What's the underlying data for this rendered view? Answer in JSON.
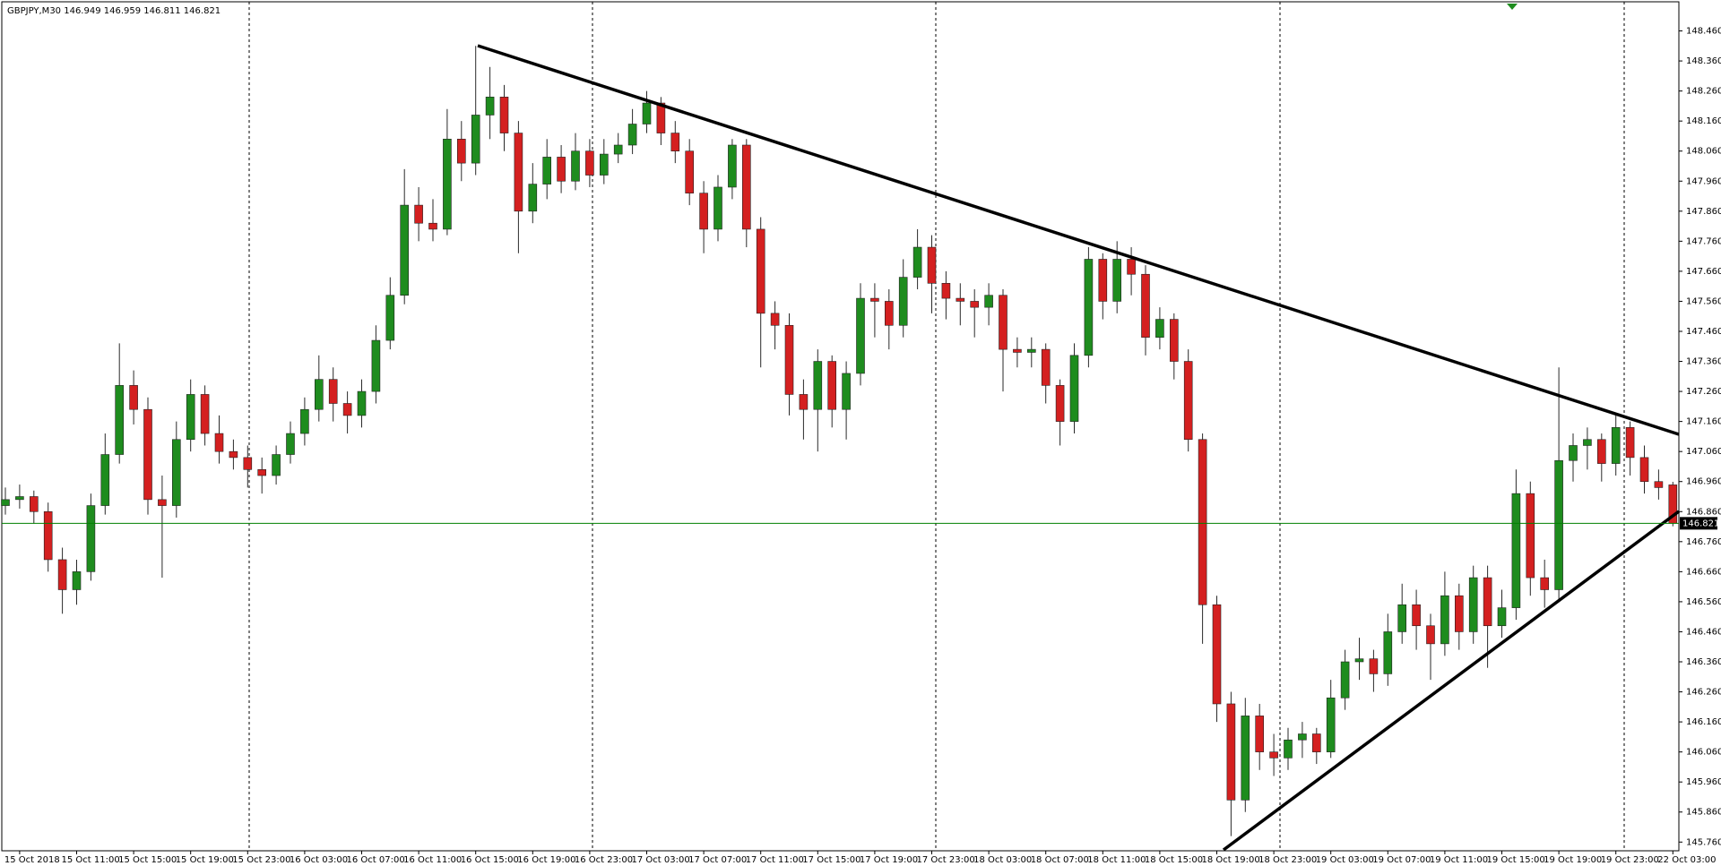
{
  "chart_data": {
    "type": "candlestick",
    "title": "GBPJPY,M30  146.949 146.959 146.811 146.821",
    "up_color": "#1e8c1e",
    "down_color": "#d42020",
    "wick_color": "#2a2a2a",
    "current_price": 146.821,
    "current_price_color": "#008000",
    "ylim": [
      145.734,
      148.548
    ],
    "yticks": [
      {
        "value": 145.76,
        "label": "145.760"
      },
      {
        "value": 145.86,
        "label": "145.860"
      },
      {
        "value": 145.96,
        "label": "145.960"
      },
      {
        "value": 146.06,
        "label": "146.060"
      },
      {
        "value": 146.16,
        "label": "146.160"
      },
      {
        "value": 146.26,
        "label": "146.260"
      },
      {
        "value": 146.36,
        "label": "146.360"
      },
      {
        "value": 146.46,
        "label": "146.460"
      },
      {
        "value": 146.56,
        "label": "146.560"
      },
      {
        "value": 146.66,
        "label": "146.660"
      },
      {
        "value": 146.76,
        "label": "146.760"
      },
      {
        "value": 146.86,
        "label": "146.860"
      },
      {
        "value": 146.96,
        "label": "146.960"
      },
      {
        "value": 147.06,
        "label": "147.060"
      },
      {
        "value": 147.16,
        "label": "147.160"
      },
      {
        "value": 147.26,
        "label": "147.260"
      },
      {
        "value": 147.36,
        "label": "147.360"
      },
      {
        "value": 147.46,
        "label": "147.460"
      },
      {
        "value": 147.56,
        "label": "147.560"
      },
      {
        "value": 147.66,
        "label": "147.660"
      },
      {
        "value": 147.76,
        "label": "147.760"
      },
      {
        "value": 147.86,
        "label": "147.860"
      },
      {
        "value": 147.96,
        "label": "147.960"
      },
      {
        "value": 148.06,
        "label": "148.060"
      },
      {
        "value": 148.16,
        "label": "148.160"
      },
      {
        "value": 148.26,
        "label": "148.260"
      },
      {
        "value": 148.36,
        "label": "148.360"
      },
      {
        "value": 148.46,
        "label": "148.460"
      }
    ],
    "categories": [
      null,
      "15 Oct 2018",
      null,
      null,
      null,
      "15 Oct 11:00",
      null,
      null,
      null,
      "15 Oct 15:00",
      null,
      null,
      null,
      "15 Oct 19:00",
      null,
      null,
      null,
      "15 Oct 23:00",
      null,
      null,
      null,
      "16 Oct 03:00",
      null,
      null,
      null,
      "16 Oct 07:00",
      null,
      null,
      null,
      "16 Oct 11:00",
      null,
      null,
      null,
      "16 Oct 15:00",
      null,
      null,
      null,
      "16 Oct 19:00",
      null,
      null,
      null,
      "16 Oct 23:00",
      null,
      null,
      null,
      "17 Oct 03:00",
      null,
      null,
      null,
      "17 Oct 07:00",
      null,
      null,
      null,
      "17 Oct 11:00",
      null,
      null,
      null,
      "17 Oct 15:00",
      null,
      null,
      null,
      "17 Oct 19:00",
      null,
      null,
      null,
      "17 Oct 23:00",
      null,
      null,
      null,
      "18 Oct 03:00",
      null,
      null,
      null,
      "18 Oct 07:00",
      null,
      null,
      null,
      "18 Oct 11:00",
      null,
      null,
      null,
      "18 Oct 15:00",
      null,
      null,
      null,
      "18 Oct 19:00",
      null,
      null,
      null,
      "18 Oct 23:00",
      null,
      null,
      null,
      "19 Oct 03:00",
      null,
      null,
      null,
      "19 Oct 07:00",
      null,
      null,
      null,
      "19 Oct 11:00",
      null,
      null,
      null,
      "19 Oct 15:00",
      null,
      null,
      null,
      "19 Oct 19:00",
      null,
      null,
      null,
      "19 Oct 23:00",
      null,
      null,
      null,
      "22 Oct 03:00"
    ],
    "ohlc": [
      [
        146.88,
        146.94,
        146.85,
        146.9
      ],
      [
        146.9,
        146.95,
        146.87,
        146.91
      ],
      [
        146.91,
        146.93,
        146.82,
        146.86
      ],
      [
        146.86,
        146.89,
        146.66,
        146.7
      ],
      [
        146.7,
        146.74,
        146.52,
        146.6
      ],
      [
        146.6,
        146.7,
        146.55,
        146.66
      ],
      [
        146.66,
        146.92,
        146.63,
        146.88
      ],
      [
        146.88,
        147.12,
        146.85,
        147.05
      ],
      [
        147.05,
        147.42,
        147.02,
        147.28
      ],
      [
        147.28,
        147.33,
        147.15,
        147.2
      ],
      [
        147.2,
        147.24,
        146.85,
        146.9
      ],
      [
        146.9,
        146.98,
        146.64,
        146.88
      ],
      [
        146.88,
        147.16,
        146.84,
        147.1
      ],
      [
        147.1,
        147.3,
        147.06,
        147.25
      ],
      [
        147.25,
        147.28,
        147.08,
        147.12
      ],
      [
        147.12,
        147.18,
        147.02,
        147.06
      ],
      [
        147.06,
        147.1,
        147.0,
        147.04
      ],
      [
        147.04,
        147.08,
        146.94,
        147.0
      ],
      [
        147.0,
        147.04,
        146.92,
        146.98
      ],
      [
        146.98,
        147.08,
        146.95,
        147.05
      ],
      [
        147.05,
        147.16,
        147.02,
        147.12
      ],
      [
        147.12,
        147.24,
        147.08,
        147.2
      ],
      [
        147.2,
        147.38,
        147.16,
        147.3
      ],
      [
        147.3,
        147.34,
        147.16,
        147.22
      ],
      [
        147.22,
        147.26,
        147.12,
        147.18
      ],
      [
        147.18,
        147.3,
        147.14,
        147.26
      ],
      [
        147.26,
        147.48,
        147.22,
        147.43
      ],
      [
        147.43,
        147.64,
        147.4,
        147.58
      ],
      [
        147.58,
        148.0,
        147.55,
        147.88
      ],
      [
        147.88,
        147.94,
        147.76,
        147.82
      ],
      [
        147.82,
        147.9,
        147.76,
        147.8
      ],
      [
        147.8,
        148.2,
        147.78,
        148.1
      ],
      [
        148.1,
        148.16,
        147.96,
        148.02
      ],
      [
        148.02,
        148.41,
        147.98,
        148.18
      ],
      [
        148.18,
        148.34,
        148.1,
        148.24
      ],
      [
        148.24,
        148.28,
        148.06,
        148.12
      ],
      [
        148.12,
        148.16,
        147.72,
        147.86
      ],
      [
        147.86,
        148.02,
        147.82,
        147.95
      ],
      [
        147.95,
        148.1,
        147.9,
        148.04
      ],
      [
        148.04,
        148.08,
        147.92,
        147.96
      ],
      [
        147.96,
        148.12,
        147.93,
        148.06
      ],
      [
        148.06,
        148.1,
        147.94,
        147.98
      ],
      [
        147.98,
        148.1,
        147.95,
        148.05
      ],
      [
        148.05,
        148.12,
        148.02,
        148.08
      ],
      [
        148.08,
        148.2,
        148.05,
        148.15
      ],
      [
        148.15,
        148.26,
        148.12,
        148.22
      ],
      [
        148.22,
        148.24,
        148.08,
        148.12
      ],
      [
        148.12,
        148.16,
        148.02,
        148.06
      ],
      [
        148.06,
        148.1,
        147.88,
        147.92
      ],
      [
        147.92,
        147.96,
        147.72,
        147.8
      ],
      [
        147.8,
        147.98,
        147.76,
        147.94
      ],
      [
        147.94,
        148.1,
        147.9,
        148.08
      ],
      [
        148.08,
        148.1,
        147.74,
        147.8
      ],
      [
        147.8,
        147.84,
        147.34,
        147.52
      ],
      [
        147.52,
        147.56,
        147.4,
        147.48
      ],
      [
        147.48,
        147.52,
        147.18,
        147.25
      ],
      [
        147.25,
        147.3,
        147.1,
        147.2
      ],
      [
        147.2,
        147.4,
        147.06,
        147.36
      ],
      [
        147.36,
        147.38,
        147.14,
        147.2
      ],
      [
        147.2,
        147.36,
        147.1,
        147.32
      ],
      [
        147.32,
        147.62,
        147.28,
        147.57
      ],
      [
        147.57,
        147.62,
        147.44,
        147.56
      ],
      [
        147.56,
        147.6,
        147.4,
        147.48
      ],
      [
        147.48,
        147.7,
        147.44,
        147.64
      ],
      [
        147.64,
        147.8,
        147.6,
        147.74
      ],
      [
        147.74,
        147.78,
        147.52,
        147.62
      ],
      [
        147.62,
        147.66,
        147.5,
        147.57
      ],
      [
        147.57,
        147.62,
        147.48,
        147.56
      ],
      [
        147.56,
        147.6,
        147.44,
        147.54
      ],
      [
        147.54,
        147.62,
        147.48,
        147.58
      ],
      [
        147.58,
        147.6,
        147.26,
        147.4
      ],
      [
        147.4,
        147.44,
        147.34,
        147.39
      ],
      [
        147.39,
        147.44,
        147.34,
        147.4
      ],
      [
        147.4,
        147.42,
        147.22,
        147.28
      ],
      [
        147.28,
        147.3,
        147.08,
        147.16
      ],
      [
        147.16,
        147.42,
        147.12,
        147.38
      ],
      [
        147.38,
        147.74,
        147.34,
        147.7
      ],
      [
        147.7,
        147.72,
        147.5,
        147.56
      ],
      [
        147.56,
        147.76,
        147.52,
        147.7
      ],
      [
        147.7,
        147.74,
        147.58,
        147.65
      ],
      [
        147.65,
        147.68,
        147.38,
        147.44
      ],
      [
        147.44,
        147.54,
        147.4,
        147.5
      ],
      [
        147.5,
        147.52,
        147.3,
        147.36
      ],
      [
        147.36,
        147.4,
        147.06,
        147.1
      ],
      [
        147.1,
        147.12,
        146.42,
        146.55
      ],
      [
        146.55,
        146.58,
        146.16,
        146.22
      ],
      [
        146.22,
        146.26,
        145.78,
        145.9
      ],
      [
        145.9,
        146.24,
        145.86,
        146.18
      ],
      [
        146.18,
        146.22,
        146.0,
        146.06
      ],
      [
        146.06,
        146.12,
        145.98,
        146.04
      ],
      [
        146.04,
        146.14,
        146.0,
        146.1
      ],
      [
        146.1,
        146.16,
        146.04,
        146.12
      ],
      [
        146.12,
        146.14,
        146.02,
        146.06
      ],
      [
        146.06,
        146.3,
        146.04,
        146.24
      ],
      [
        146.24,
        146.4,
        146.2,
        146.36
      ],
      [
        146.36,
        146.44,
        146.3,
        146.37
      ],
      [
        146.37,
        146.4,
        146.26,
        146.32
      ],
      [
        146.32,
        146.52,
        146.28,
        146.46
      ],
      [
        146.46,
        146.62,
        146.42,
        146.55
      ],
      [
        146.55,
        146.6,
        146.4,
        146.48
      ],
      [
        146.48,
        146.52,
        146.3,
        146.42
      ],
      [
        146.42,
        146.66,
        146.38,
        146.58
      ],
      [
        146.58,
        146.62,
        146.4,
        146.46
      ],
      [
        146.46,
        146.68,
        146.42,
        146.64
      ],
      [
        146.64,
        146.68,
        146.34,
        146.48
      ],
      [
        146.48,
        146.6,
        146.44,
        146.54
      ],
      [
        146.54,
        147.0,
        146.5,
        146.92
      ],
      [
        146.92,
        146.96,
        146.58,
        146.64
      ],
      [
        146.64,
        146.7,
        146.54,
        146.6
      ],
      [
        146.6,
        147.34,
        146.56,
        147.03
      ],
      [
        147.03,
        147.12,
        146.96,
        147.08
      ],
      [
        147.08,
        147.14,
        147.0,
        147.1
      ],
      [
        147.1,
        147.12,
        146.96,
        147.02
      ],
      [
        147.02,
        147.18,
        146.98,
        147.14
      ],
      [
        147.14,
        147.16,
        146.98,
        147.04
      ],
      [
        147.04,
        147.08,
        146.92,
        146.96
      ],
      [
        146.96,
        147.0,
        146.9,
        146.94
      ],
      [
        146.949,
        146.959,
        146.811,
        146.821
      ]
    ]
  }
}
